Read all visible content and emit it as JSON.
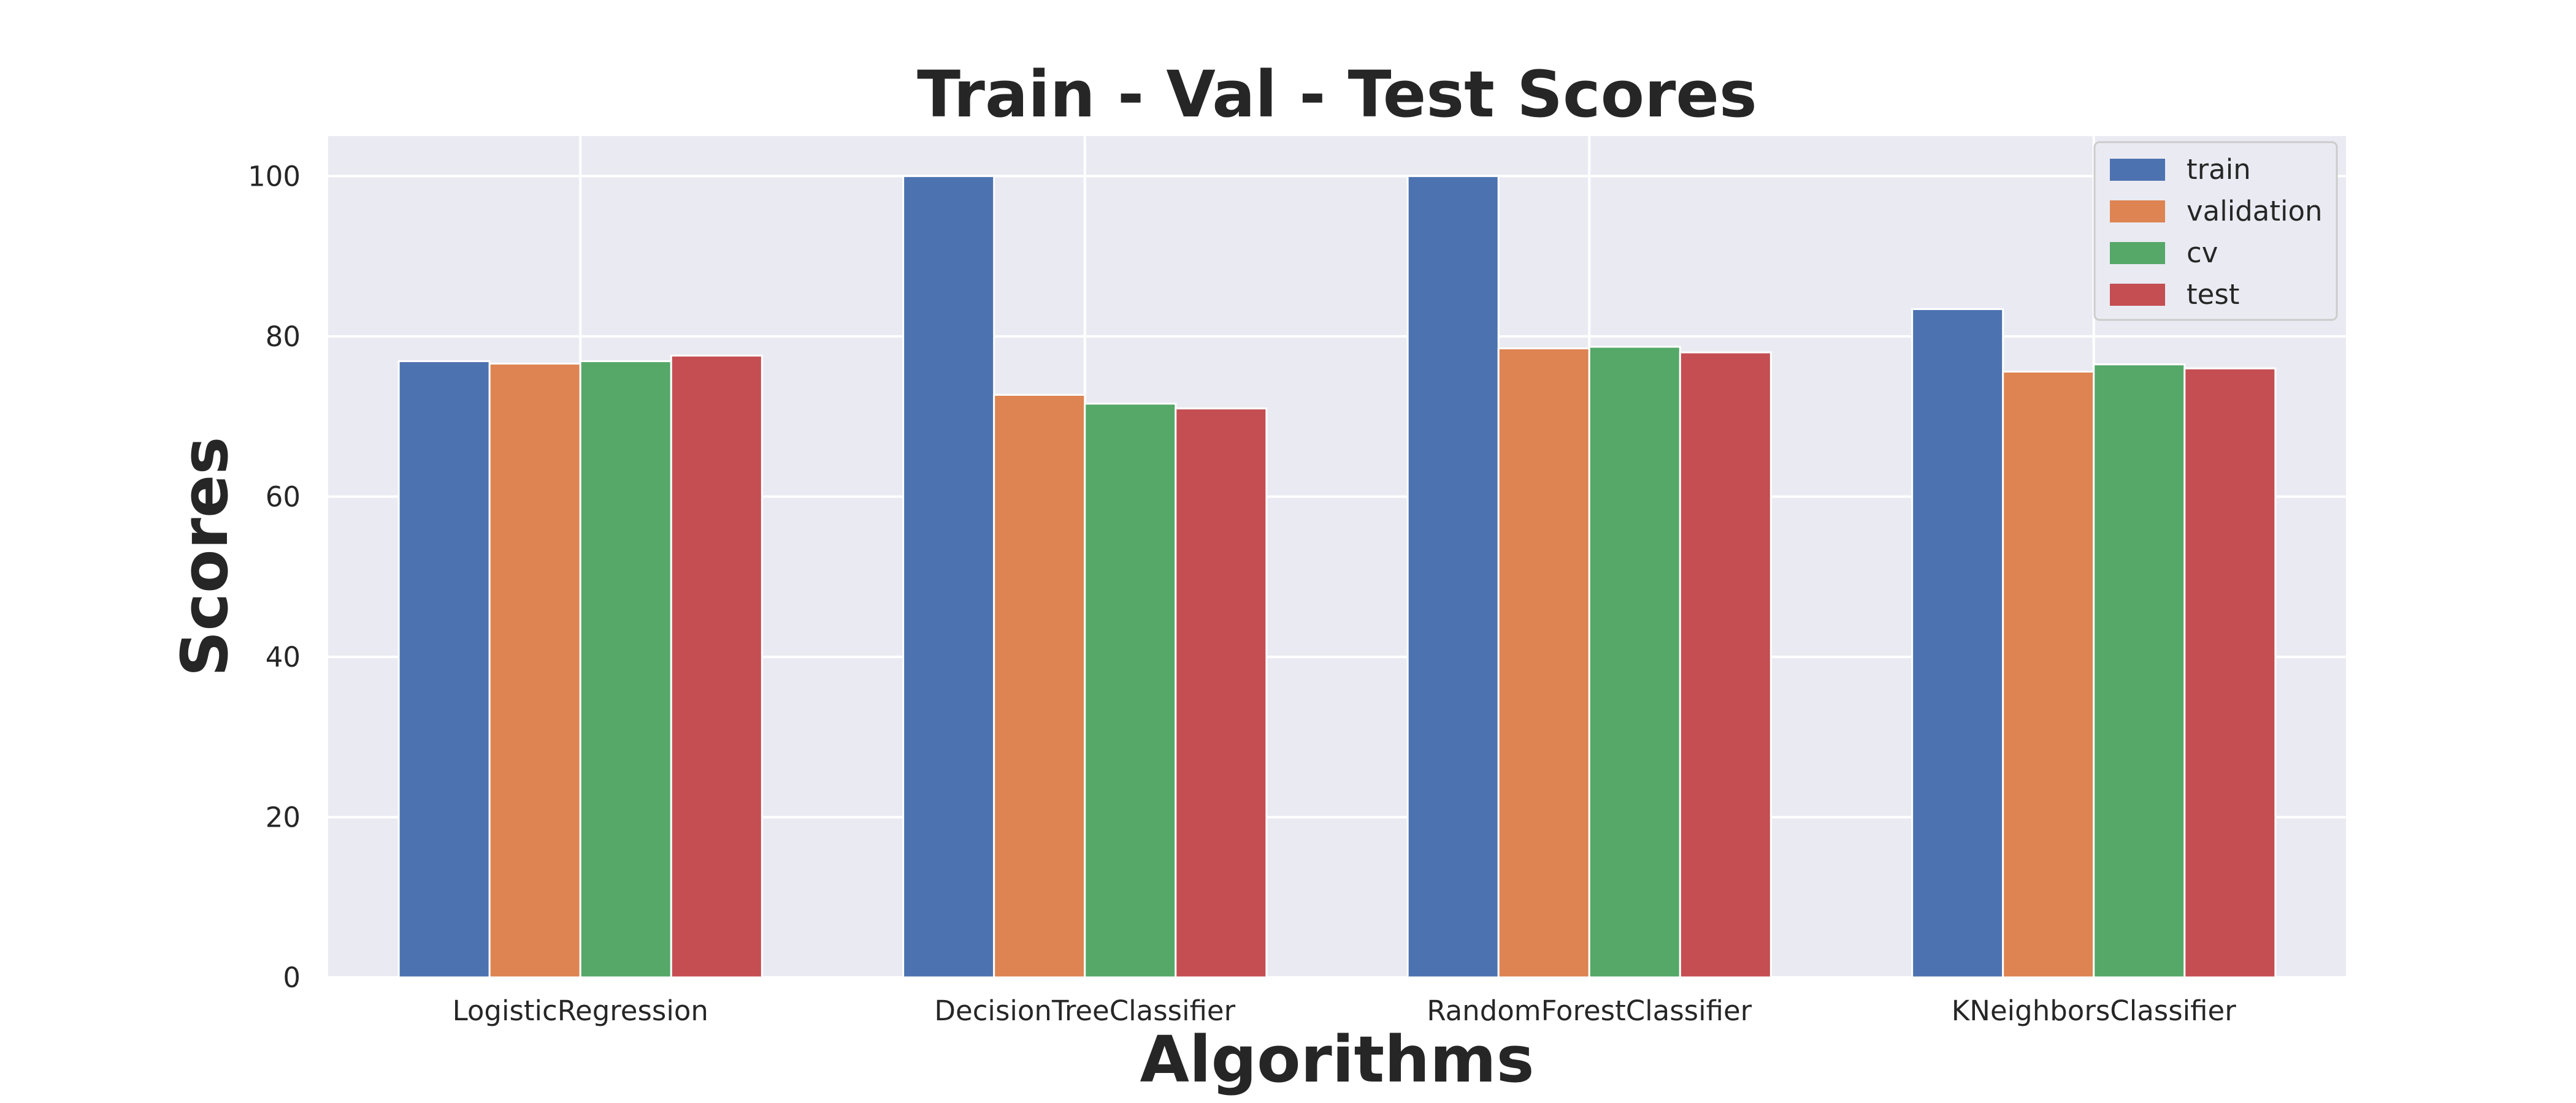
{
  "chart_data": {
    "type": "bar",
    "title": "Train - Val - Test Scores",
    "xlabel": "Algorithms",
    "ylabel": "Scores",
    "categories": [
      "LogisticRegression",
      "DecisionTreeClassifier",
      "RandomForestClassifier",
      "KNeighborsClassifier"
    ],
    "series": [
      {
        "name": "train",
        "color": "#4c72b0",
        "values": [
          76.9,
          100.0,
          100.0,
          83.4
        ]
      },
      {
        "name": "validation",
        "color": "#dd8452",
        "values": [
          76.6,
          72.7,
          78.5,
          75.6
        ]
      },
      {
        "name": "cv",
        "color": "#55a868",
        "values": [
          76.9,
          71.6,
          78.7,
          76.5
        ]
      },
      {
        "name": "test",
        "color": "#c44e52",
        "values": [
          77.6,
          71.0,
          78.0,
          76.0
        ]
      }
    ],
    "ylim": [
      0,
      105
    ],
    "yticks": [
      0,
      20,
      40,
      60,
      80,
      100
    ],
    "grid": true,
    "legend_position": "top-right",
    "background_color": "#eaeaf2",
    "grid_color": "#ffffff"
  }
}
